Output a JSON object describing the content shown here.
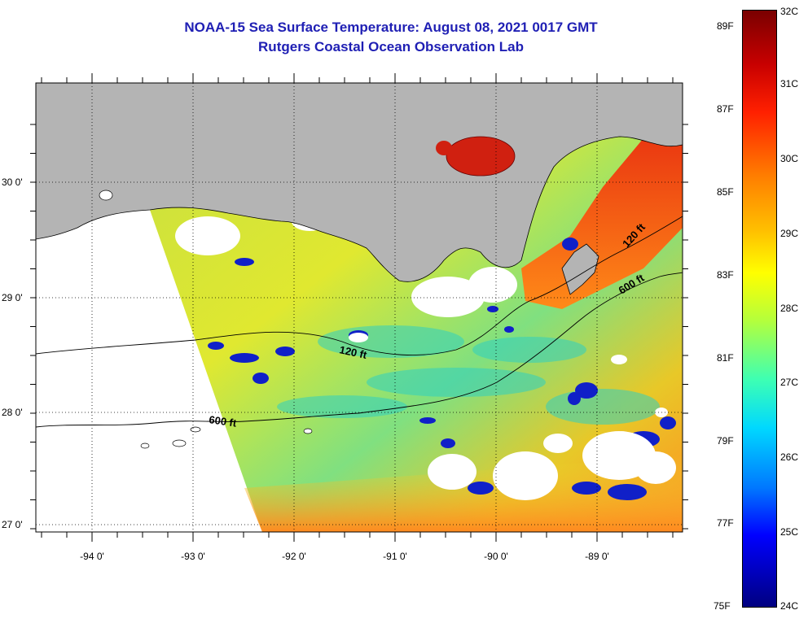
{
  "title": {
    "line1": "NOAA-15 Sea Surface Temperature:  August 08, 2021 0017 GMT",
    "line2": "Rutgers Coastal Ocean Observation Lab"
  },
  "map": {
    "lat_labels": [
      "30 0'",
      "29 0'",
      "28 0'",
      "27 0'"
    ],
    "lon_labels": [
      "-94 0'",
      "-93 0'",
      "-92 0'",
      "-91 0'",
      "-90 0'",
      "-89 0'"
    ],
    "contour_labels": [
      "120 ft",
      "600 ft",
      "120 ft",
      "600 ft"
    ]
  },
  "colorbar": {
    "fahrenheit": [
      "89F",
      "87F",
      "85F",
      "83F",
      "81F",
      "79F",
      "77F",
      "75F"
    ],
    "celsius": [
      "32C",
      "31C",
      "30C",
      "29C",
      "28C",
      "27C",
      "26C",
      "25C",
      "24C"
    ]
  },
  "colors": {
    "land": "#b4b4b4",
    "title": "#1f1fb4"
  }
}
